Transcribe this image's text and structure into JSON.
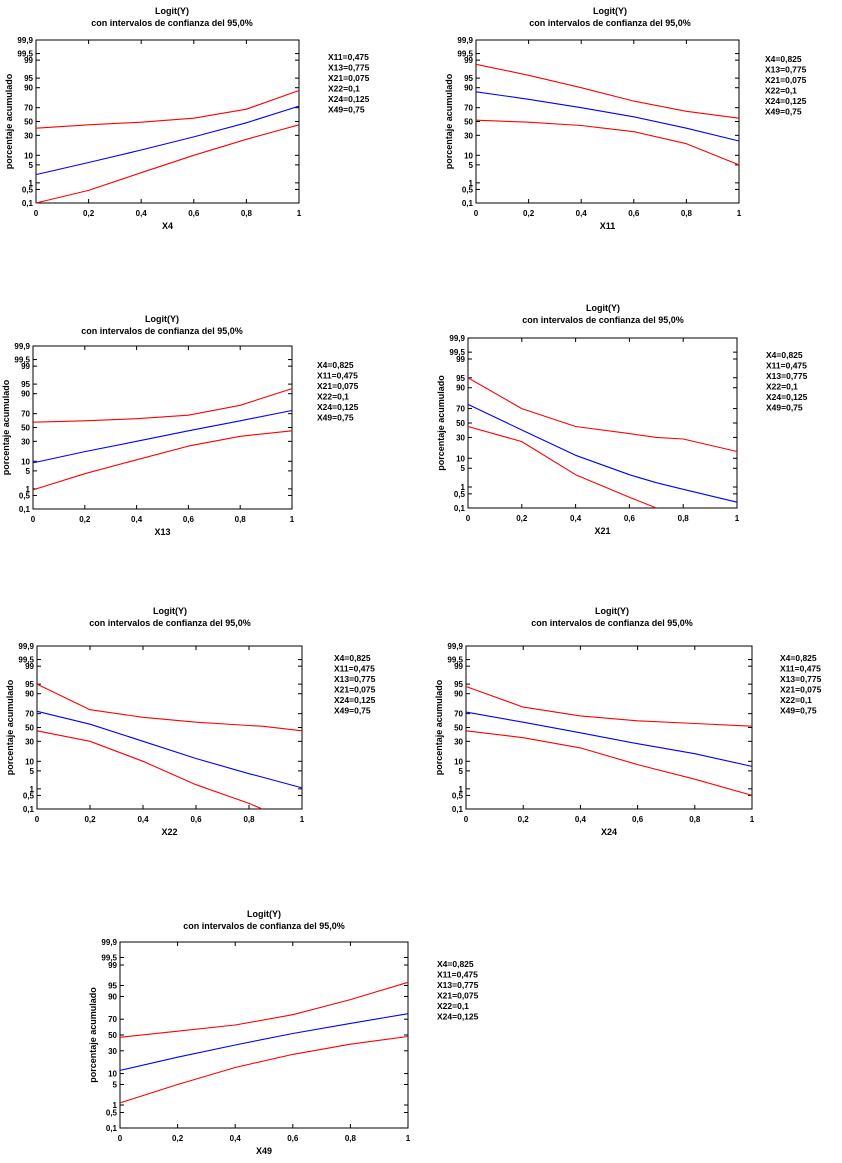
{
  "chart_data": [
    {
      "type": "line",
      "title": "Logit(Y)",
      "subtitle": "con intervalos de confianza del  95,0%",
      "xlabel": "X4",
      "ylabel": "porcentaje acumulado",
      "x_ticks": [
        "0",
        "0,2",
        "0,4",
        "0,6",
        "0,8",
        "1"
      ],
      "y_ticks": [
        "0,1",
        "0,5",
        "1",
        "5",
        "10",
        "30",
        "50",
        "70",
        "90",
        "95",
        "99",
        "99,5",
        "99,9"
      ],
      "xlim": [
        0,
        1
      ],
      "ylim": [
        0.1,
        99.9
      ],
      "conditions": [
        "X11=0,475",
        "X13=0,775",
        "X21=0,075",
        "X22=0,1",
        "X24=0,125",
        "X49=0,75"
      ],
      "x": [
        0,
        0.2,
        0.4,
        0.6,
        0.8,
        1
      ],
      "series": [
        {
          "values": [
            0.1,
            0.45,
            2.6,
            10,
            25,
            45
          ],
          "color": "#ff0000"
        },
        {
          "values": [
            2.2,
            6,
            14,
            28,
            48,
            72
          ],
          "color": "#0000ff"
        },
        {
          "values": [
            40,
            45,
            49,
            55,
            68,
            88
          ],
          "color": "#ff0000"
        }
      ]
    },
    {
      "type": "line",
      "title": "Logit(Y)",
      "subtitle": "con intervalos de confianza del  95,0%",
      "xlabel": "X11",
      "ylabel": "porcentaje acumulado",
      "x_ticks": [
        "0",
        "0,2",
        "0,4",
        "0,6",
        "0,8",
        "1"
      ],
      "y_ticks": [
        "0,1",
        "0,5",
        "1",
        "5",
        "10",
        "30",
        "50",
        "70",
        "90",
        "95",
        "99",
        "99,5",
        "99,9"
      ],
      "xlim": [
        0,
        1
      ],
      "ylim": [
        0.1,
        99.9
      ],
      "conditions": [
        "X4=0,825",
        "X13=0,775",
        "X21=0,075",
        "X22=0,1",
        "X24=0,125",
        "X49=0,75"
      ],
      "x": [
        0,
        0.2,
        0.4,
        0.6,
        0.8,
        1
      ],
      "series": [
        {
          "values": [
            52,
            49,
            44,
            35,
            20,
            5
          ],
          "color": "#ff0000"
        },
        {
          "values": [
            87,
            80,
            70,
            57,
            40,
            23
          ],
          "color": "#0000ff"
        },
        {
          "values": [
            98.5,
            96,
            90,
            78,
            65,
            55
          ],
          "color": "#ff0000"
        }
      ]
    },
    {
      "type": "line",
      "title": "Logit(Y)",
      "subtitle": "con intervalos de confianza del  95,0%",
      "xlabel": "X13",
      "ylabel": "porcentaje acumulado",
      "x_ticks": [
        "0",
        "0,2",
        "0,4",
        "0,6",
        "0,8",
        "1"
      ],
      "y_ticks": [
        "0,1",
        "0,5",
        "1",
        "5",
        "10",
        "30",
        "50",
        "70",
        "90",
        "95",
        "99",
        "99,5",
        "99,9"
      ],
      "xlim": [
        0,
        1
      ],
      "ylim": [
        0.1,
        99.9
      ],
      "conditions": [
        "X4=0,825",
        "X11=0,475",
        "X21=0,075",
        "X22=0,1",
        "X24=0,125",
        "X49=0,75"
      ],
      "x": [
        0,
        0.2,
        0.4,
        0.6,
        0.8,
        1
      ],
      "series": [
        {
          "values": [
            0.9,
            4,
            11,
            24,
            37,
            45
          ],
          "color": "#ff0000"
        },
        {
          "values": [
            9,
            18,
            30,
            45,
            60,
            74
          ],
          "color": "#0000ff"
        },
        {
          "values": [
            58,
            60,
            63,
            68,
            80,
            93
          ],
          "color": "#ff0000"
        }
      ]
    },
    {
      "type": "line",
      "title": "Logit(Y)",
      "subtitle": "con intervalos de confianza del  95,0%",
      "xlabel": "X21",
      "ylabel": "porcentaje acumulado",
      "x_ticks": [
        "0",
        "0,2",
        "0,4",
        "0,6",
        "0,8",
        "1"
      ],
      "y_ticks": [
        "0,1",
        "0,5",
        "1",
        "5",
        "10",
        "30",
        "50",
        "70",
        "90",
        "95",
        "99",
        "99,5",
        "99,9"
      ],
      "xlim": [
        0,
        1
      ],
      "ylim": [
        0.1,
        99.9
      ],
      "conditions": [
        "X4=0,825",
        "X11=0,475",
        "X13=0,775",
        "X22=0,1",
        "X24=0,125",
        "X49=0,75"
      ],
      "x": [
        0,
        0.2,
        0.4,
        0.6,
        0.7,
        0.8,
        1
      ],
      "series": [
        {
          "values": [
            45,
            25,
            3,
            0.35,
            0.1,
            null,
            null
          ],
          "color": "#ff0000"
        },
        {
          "values": [
            75,
            40,
            12,
            3,
            1.5,
            0.8,
            0.2
          ],
          "color": "#0000ff"
        },
        {
          "values": [
            95,
            70,
            45,
            35,
            30,
            28,
            15
          ],
          "color": "#ff0000"
        }
      ]
    },
    {
      "type": "line",
      "title": "Logit(Y)",
      "subtitle": "con intervalos de confianza del  95,0%",
      "xlabel": "X22",
      "ylabel": "porcentaje acumulado",
      "x_ticks": [
        "0",
        "0,2",
        "0,4",
        "0,6",
        "0,8",
        "1"
      ],
      "y_ticks": [
        "0,1",
        "0,5",
        "1",
        "5",
        "10",
        "30",
        "50",
        "70",
        "90",
        "95",
        "99",
        "99,5",
        "99,9"
      ],
      "xlim": [
        0,
        1
      ],
      "ylim": [
        0.1,
        99.9
      ],
      "conditions": [
        "X4=0,825",
        "X11=0,475",
        "X13=0,775",
        "X21=0,075",
        "X24=0,125",
        "X49=0,75"
      ],
      "x": [
        0,
        0.2,
        0.4,
        0.6,
        0.8,
        0.85,
        1
      ],
      "series": [
        {
          "values": [
            45,
            30,
            10,
            1.5,
            0.2,
            0.1,
            null
          ],
          "color": "#ff0000"
        },
        {
          "values": [
            73,
            55,
            30,
            12,
            4,
            3,
            1.1
          ],
          "color": "#0000ff"
        },
        {
          "values": [
            95,
            75,
            65,
            58,
            53,
            52,
            45
          ],
          "color": "#ff0000"
        }
      ]
    },
    {
      "type": "line",
      "title": "Logit(Y)",
      "subtitle": "con intervalos de confianza del  95,0%",
      "xlabel": "X24",
      "ylabel": "porcentaje acumulado",
      "x_ticks": [
        "0",
        "0,2",
        "0,4",
        "0,6",
        "0,8",
        "1"
      ],
      "y_ticks": [
        "0,1",
        "0,5",
        "1",
        "5",
        "10",
        "30",
        "50",
        "70",
        "90",
        "95",
        "99",
        "99,5",
        "99,9"
      ],
      "xlim": [
        0,
        1
      ],
      "ylim": [
        0.1,
        99.9
      ],
      "conditions": [
        "X4=0,825",
        "X11=0,475",
        "X13=0,775",
        "X21=0,075",
        "X22=0,1",
        "X49=0,75"
      ],
      "x": [
        0,
        0.2,
        0.4,
        0.6,
        0.8,
        1
      ],
      "series": [
        {
          "values": [
            45,
            35,
            22,
            8,
            2.5,
            0.5
          ],
          "color": "#ff0000"
        },
        {
          "values": [
            72,
            58,
            42,
            27,
            16,
            7
          ],
          "color": "#0000ff"
        },
        {
          "values": [
            94,
            78,
            67,
            60,
            56,
            52
          ],
          "color": "#ff0000"
        }
      ]
    },
    {
      "type": "line",
      "title": "Logit(Y)",
      "subtitle": "con intervalos de confianza del  95,0%",
      "xlabel": "X49",
      "ylabel": "porcentaje acumulado",
      "x_ticks": [
        "0",
        "0,2",
        "0,4",
        "0,6",
        "0,8",
        "1"
      ],
      "y_ticks": [
        "0,1",
        "0,5",
        "1",
        "5",
        "10",
        "30",
        "50",
        "70",
        "90",
        "95",
        "99",
        "99,5",
        "99,9"
      ],
      "xlim": [
        0,
        1
      ],
      "ylim": [
        0.1,
        99.9
      ],
      "conditions": [
        "X4=0,825",
        "X11=0,475",
        "X13=0,775",
        "X21=0,075",
        "X22=0,1",
        "X24=0,125"
      ],
      "x": [
        0,
        0.2,
        0.4,
        0.6,
        0.8,
        1
      ],
      "series": [
        {
          "values": [
            1.2,
            5,
            14,
            26,
            38,
            48
          ],
          "color": "#ff0000"
        },
        {
          "values": [
            12,
            23,
            37,
            52,
            65,
            76
          ],
          "color": "#0000ff"
        },
        {
          "values": [
            47,
            55,
            63,
            75,
            88,
            96
          ],
          "color": "#ff0000"
        }
      ]
    }
  ]
}
